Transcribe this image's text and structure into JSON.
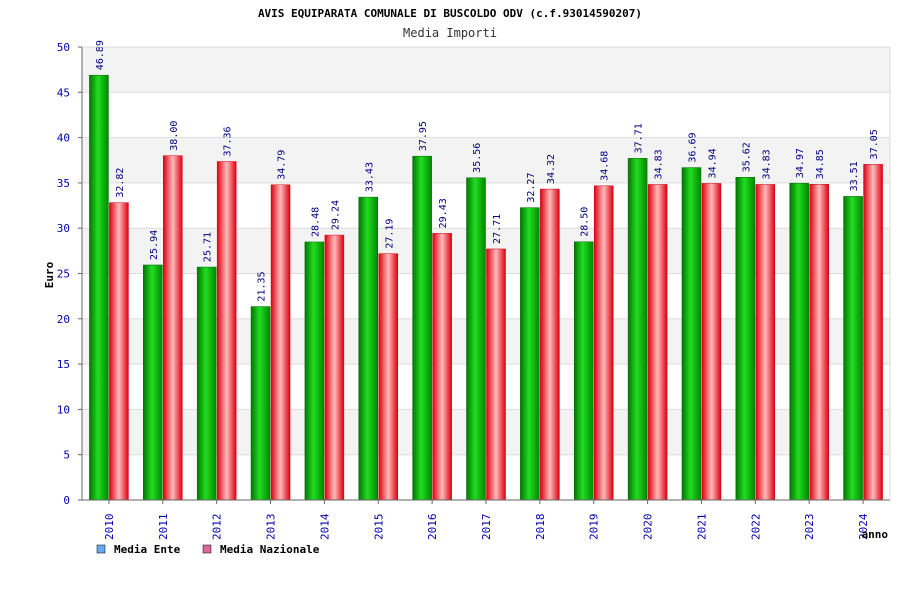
{
  "colors": {
    "ente": "#00aa00",
    "nazionale": "#ee2233",
    "legend_ente": "#66aaee",
    "legend_nazionale": "#dd6699",
    "band": "#f3f3f3",
    "grid": "#dddddd",
    "tick_text": "#0000aa"
  },
  "chart_data": {
    "type": "bar",
    "title": "AVIS EQUIPARATA COMUNALE DI BUSCOLDO ODV (c.f.93014590207)",
    "subtitle": "Media Importi",
    "xlabel": "anno",
    "ylabel": "Euro",
    "ylim": [
      0,
      50
    ],
    "yticks": [
      0,
      5,
      10,
      15,
      20,
      25,
      30,
      35,
      40,
      45,
      50
    ],
    "grid": true,
    "legend_position": "bottom-left",
    "categories": [
      "2010",
      "2011",
      "2012",
      "2013",
      "2014",
      "2015",
      "2016",
      "2017",
      "2018",
      "2019",
      "2020",
      "2021",
      "2022",
      "2023",
      "2024"
    ],
    "series": [
      {
        "name": "Media Ente",
        "values": [
          46.89,
          25.94,
          25.71,
          21.35,
          28.48,
          33.43,
          37.95,
          35.56,
          32.27,
          28.5,
          37.71,
          36.69,
          35.62,
          34.97,
          33.51
        ],
        "labels": [
          "46.89",
          "25.94",
          "25.71",
          "21.35",
          "28.48",
          "33.43",
          "37.95",
          "35.56",
          "32.27",
          "28.50",
          "37.71",
          "36.69",
          "35.62",
          "34.97",
          "33.51"
        ]
      },
      {
        "name": "Media Nazionale",
        "values": [
          32.82,
          38.0,
          37.36,
          34.79,
          29.24,
          27.19,
          29.43,
          27.71,
          34.32,
          34.68,
          34.83,
          34.94,
          34.83,
          34.85,
          37.05
        ],
        "labels": [
          "32.82",
          "38.00",
          "37.36",
          "34.79",
          "29.24",
          "27.19",
          "29.43",
          "27.71",
          "34.32",
          "34.68",
          "34.83",
          "34.94",
          "34.83",
          "34.85",
          "37.05"
        ]
      }
    ]
  }
}
